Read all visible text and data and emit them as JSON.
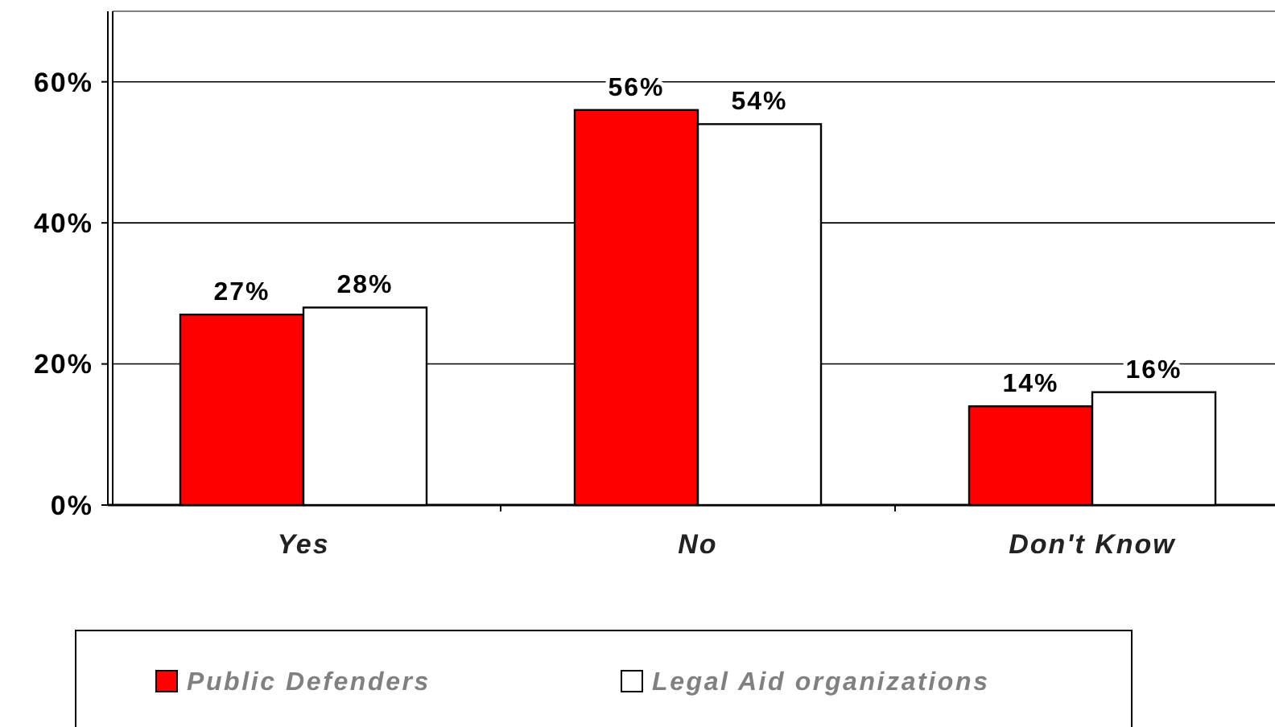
{
  "chart_data": {
    "type": "bar",
    "categories": [
      "Yes",
      "No",
      "Don't Know"
    ],
    "series": [
      {
        "name": "Public Defenders",
        "color": "#ff0000",
        "values": [
          27,
          56,
          14
        ],
        "value_labels": [
          "27%",
          "56%",
          "14%"
        ]
      },
      {
        "name": "Legal Aid organizations",
        "color": "#ffffff",
        "values": [
          28,
          54,
          16
        ],
        "value_labels": [
          "28%",
          "54%",
          "16%"
        ]
      }
    ],
    "ylim": [
      0,
      70
    ],
    "yticks": [
      {
        "value": 0,
        "label": "0%"
      },
      {
        "value": 20,
        "label": "20%"
      },
      {
        "value": 40,
        "label": "40%"
      },
      {
        "value": 60,
        "label": "60%"
      }
    ],
    "grid": "y",
    "legend": "bottom"
  }
}
